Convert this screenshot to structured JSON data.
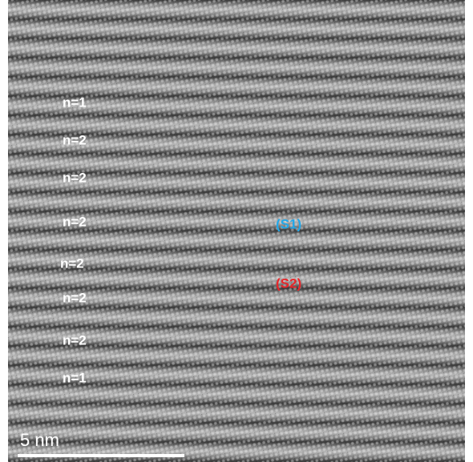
{
  "layer_labels": [
    "n=1",
    "n=2",
    "n=2",
    "n=2",
    "n=2",
    "n=2",
    "n=2",
    "n=1"
  ],
  "region_labels": [
    "(S1)",
    "(S2)"
  ],
  "scale_bar": "5 nm"
}
